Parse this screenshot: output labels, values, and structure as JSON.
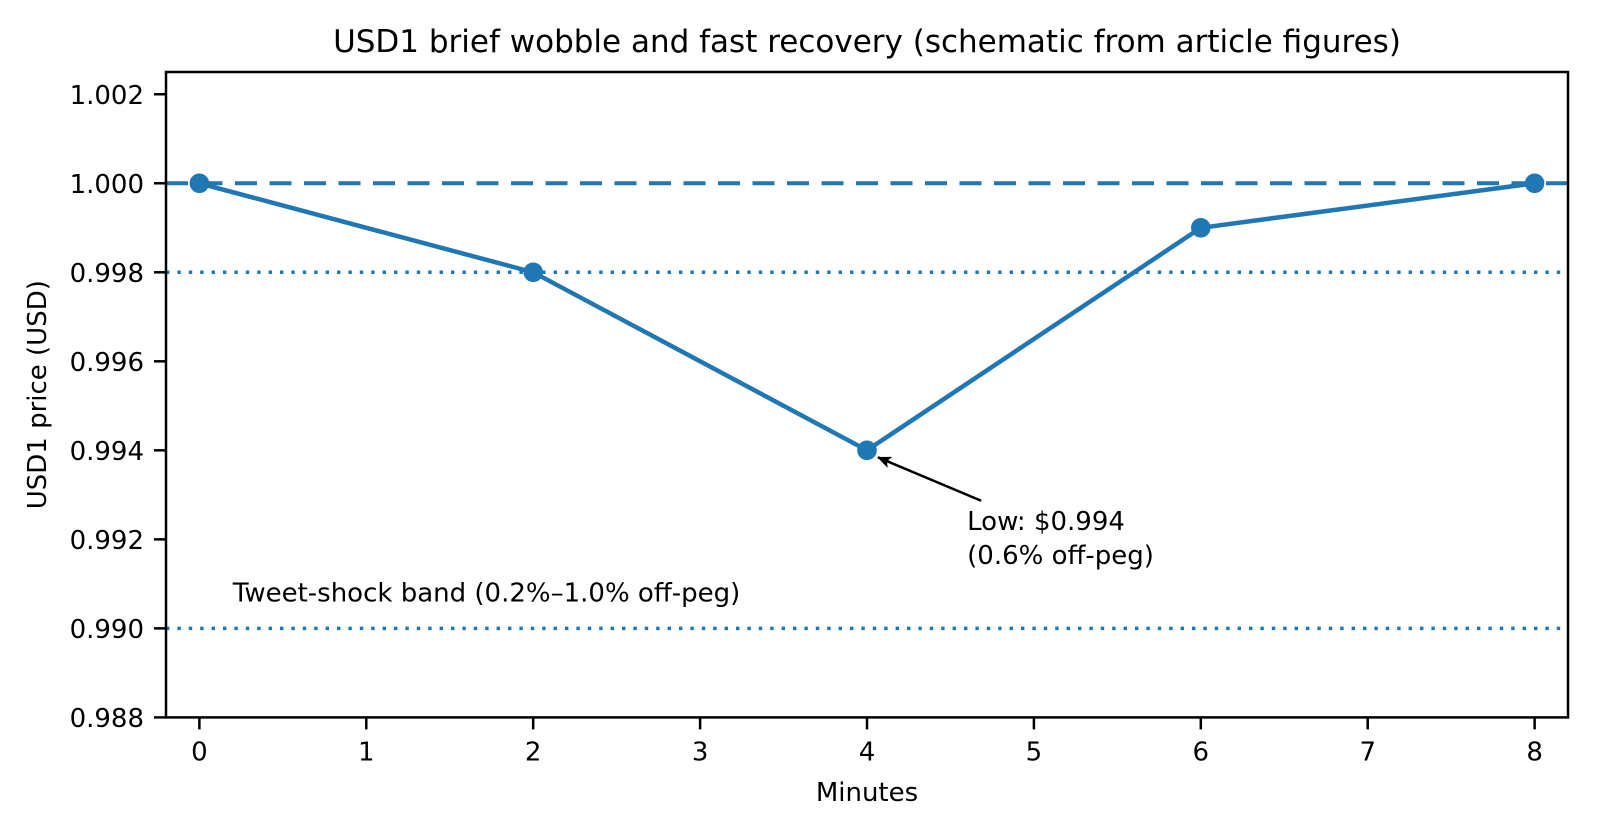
{
  "chart_data": {
    "type": "line",
    "title": "USD1 brief wobble and fast recovery (schematic from article figures)",
    "xlabel": "Minutes",
    "ylabel": "USD1 price (USD)",
    "x": [
      0,
      2,
      4,
      6,
      8
    ],
    "y": [
      1.0,
      0.998,
      0.994,
      0.999,
      1.0
    ],
    "line_color": "#1f77b4",
    "marker": "circle",
    "grid": false,
    "legend": "none",
    "xlim": [
      -0.2,
      8.2
    ],
    "ylim": [
      0.988,
      1.0025
    ],
    "xticks": {
      "values": [
        0,
        1,
        2,
        3,
        4,
        5,
        6,
        7,
        8
      ],
      "labels": [
        "0",
        "1",
        "2",
        "3",
        "4",
        "5",
        "6",
        "7",
        "8"
      ]
    },
    "yticks": {
      "values": [
        0.988,
        0.99,
        0.992,
        0.994,
        0.996,
        0.998,
        1.0,
        1.002
      ],
      "labels": [
        "0.988",
        "0.990",
        "0.992",
        "0.994",
        "0.996",
        "0.998",
        "1.000",
        "1.002"
      ]
    },
    "reference_lines": [
      {
        "y": 1.0,
        "style": "dashed",
        "color": "#1f77b4"
      },
      {
        "y": 0.998,
        "style": "dotted",
        "color": "#1f77b4"
      },
      {
        "y": 0.99,
        "style": "dotted",
        "color": "#1f77b4"
      }
    ],
    "annotation": {
      "line1": "Low: $0.994",
      "line2": "(0.6% off-peg)",
      "target_xy": [
        4,
        0.994
      ],
      "text_xy": [
        4.6,
        0.9928
      ]
    },
    "band_label": {
      "text": "Tweet-shock band (0.2%–1.0% off-peg)",
      "xy": [
        0.2,
        0.9906
      ]
    },
    "text_color": "#000000",
    "background_color": "#ffffff",
    "spine_color": "#000000"
  }
}
